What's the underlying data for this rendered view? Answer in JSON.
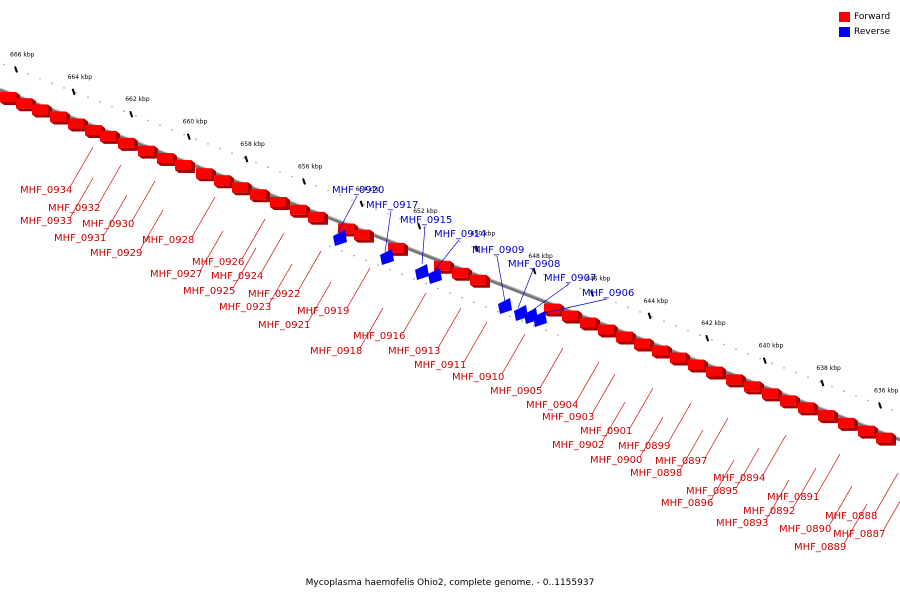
{
  "colors": {
    "forward": "#ff0000",
    "reverse": "#0000ff",
    "axis": "#888888",
    "label_forward": "#cc0000",
    "label_reverse": "#0000cc"
  },
  "legend": {
    "forward_label": "Forward",
    "reverse_label": "Reverse"
  },
  "footer": {
    "title": "Mycoplasma haemofelis Ohio2, complete genome. - 0..1155937"
  },
  "kbp_ticks": [
    "666 kbp",
    "664 kbp",
    "662 kbp",
    "660 kbp",
    "658 kbp",
    "656 kbp",
    "654 kbp",
    "652 kbp",
    "650 kbp",
    "648 kbp",
    "646 kbp",
    "644 kbp",
    "642 kbp",
    "640 kbp",
    "638 kbp",
    "636 kbp"
  ],
  "forward_genes": [
    "MHF_0934",
    "MHF_0933",
    "MHF_0932",
    "MHF_0931",
    "MHF_0930",
    "MHF_0929",
    "MHF_0928",
    "MHF_0927",
    "MHF_0926",
    "MHF_0925",
    "MHF_0924",
    "MHF_0923",
    "MHF_0922",
    "MHF_0921",
    "MHF_0919",
    "MHF_0918",
    "MHF_0916",
    "MHF_0913",
    "MHF_0911",
    "MHF_0910",
    "MHF_0905",
    "MHF_0904",
    "MHF_0903",
    "MHF_0902",
    "MHF_0901",
    "MHF_0900",
    "MHF_0899",
    "MHF_0898",
    "MHF_0897",
    "MHF_0896",
    "MHF_0895",
    "MHF_0894",
    "MHF_0893",
    "MHF_0892",
    "MHF_0891",
    "MHF_0890",
    "MHF_0889",
    "MHF_0888",
    "MHF_0887"
  ],
  "reverse_genes": [
    "MHF_0920",
    "MHF_0917",
    "MHF_0915",
    "MHF_0914",
    "MHF_0909",
    "MHF_0908",
    "MHF_0907",
    "MHF_0906"
  ]
}
